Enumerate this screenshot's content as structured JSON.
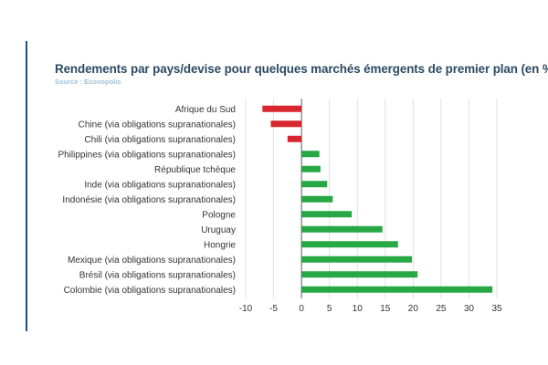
{
  "chart_data": {
    "type": "bar",
    "orientation": "horizontal",
    "title": "Rendements par pays/devise pour quelques marchés émergents de premier plan (en %)",
    "subtitle": "Source : Econopolis",
    "categories": [
      "Afrique du Sud",
      "Chine (via obligations supranationales)",
      "Chili (via obligations supranationales)",
      "Philippines (via obligations supranationales)",
      "République tchèque",
      "Inde (via obligations supranationales)",
      "Indonésie (via obligations supranationales)",
      "Pologne",
      "Uruguay",
      "Hongrie",
      "Mexique (via obligations supranationales)",
      "Brésil (via obligations supranationales)",
      "Colombie (via obligations supranationales)"
    ],
    "values": [
      -7,
      -5.5,
      -2.5,
      3.2,
      3.4,
      4.6,
      5.6,
      9,
      14.5,
      17.3,
      19.8,
      20.8,
      34.2
    ],
    "xlim": [
      -10,
      35
    ],
    "xticks": [
      -10,
      -5,
      0,
      5,
      10,
      15,
      20,
      25,
      30,
      35
    ],
    "grid": "vertical",
    "colors": {
      "positive": "#27a845",
      "negative": "#d7262d",
      "grid": "#d9d9d9",
      "axis": "#333333",
      "title": "#2c4a63",
      "subtitle": "#9fc2d8",
      "accent": "#1f4e79"
    }
  }
}
